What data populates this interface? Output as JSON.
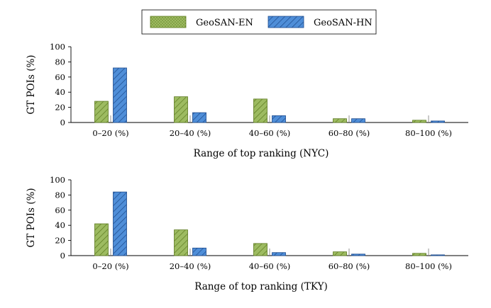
{
  "legend": {
    "items": [
      {
        "name": "GeoSAN-EN",
        "fill": "#9dbb61",
        "stroke": "#5c7a1f",
        "pattern": "dots"
      },
      {
        "name": "GeoSAN-HN",
        "fill": "#4f8ed8",
        "stroke": "#1c4a8c",
        "pattern": "hatch"
      }
    ]
  },
  "chart_data": [
    {
      "type": "bar",
      "categories": [
        "0–20 (%)",
        "20–40 (%)",
        "40–60 (%)",
        "60–80 (%)",
        "80–100 (%)"
      ],
      "series": [
        {
          "name": "GeoSAN-EN",
          "values": [
            28,
            34,
            31,
            5,
            3
          ]
        },
        {
          "name": "GeoSAN-HN",
          "values": [
            72,
            13,
            9,
            5,
            2
          ]
        }
      ],
      "xlabel": "Range of top ranking (NYC)",
      "ylabel": "GT POIs (%)",
      "ylim": [
        0,
        100
      ],
      "yticks": [
        0,
        20,
        40,
        60,
        80,
        100
      ],
      "grid": false
    },
    {
      "type": "bar",
      "categories": [
        "0–20 (%)",
        "20–40 (%)",
        "40–60 (%)",
        "60–80 (%)",
        "80–100 (%)"
      ],
      "series": [
        {
          "name": "GeoSAN-EN",
          "values": [
            42,
            34,
            16,
            5,
            3
          ]
        },
        {
          "name": "GeoSAN-HN",
          "values": [
            84,
            10,
            4,
            2,
            1
          ]
        }
      ],
      "xlabel": "Range of top ranking (TKY)",
      "ylabel": "GT POIs (%)",
      "ylim": [
        0,
        100
      ],
      "yticks": [
        0,
        20,
        40,
        60,
        80,
        100
      ],
      "grid": false
    }
  ]
}
